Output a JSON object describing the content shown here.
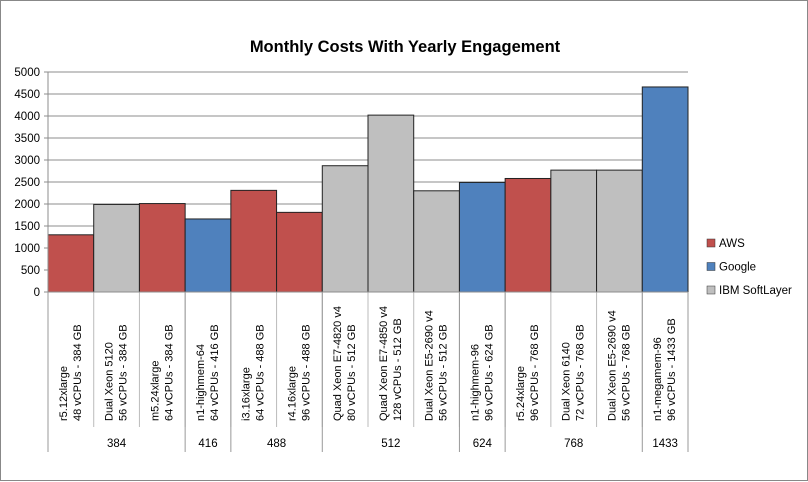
{
  "chart_data": {
    "type": "bar",
    "title": "Monthly Costs With Yearly Engagement",
    "xlabel": "",
    "ylabel": "",
    "ylim": [
      0,
      5000
    ],
    "yticks": [
      "0",
      "500",
      "1000",
      "1500",
      "2000",
      "2500",
      "3000",
      "3500",
      "4000",
      "4500",
      "5000"
    ],
    "grid": true,
    "legend_position": "right",
    "legend": [
      {
        "name": "AWS",
        "color": "#C0504D"
      },
      {
        "name": "Google",
        "color": "#4F81BD"
      },
      {
        "name": "IBM SoftLayer",
        "color": "#BFBFBF"
      }
    ],
    "bars": [
      {
        "name": "r5.12xlarge",
        "spec": "48 vCPUs - 384 GB",
        "provider": "AWS",
        "value": 1300
      },
      {
        "name": "Dual Xeon 5120",
        "spec": "56 vCPUs - 384 GB",
        "provider": "IBM SoftLayer",
        "value": 1990
      },
      {
        "name": "m5.24xlarge",
        "spec": "64 vCPUs - 384 GB",
        "provider": "AWS",
        "value": 2010
      },
      {
        "name": "n1-highmem-64",
        "spec": "64 vCPUs - 416 GB",
        "provider": "Google",
        "value": 1660
      },
      {
        "name": "i3.16xlarge",
        "spec": "64 vCPUs - 488 GB",
        "provider": "AWS",
        "value": 2310
      },
      {
        "name": "r4.16xlarge",
        "spec": "96 vCPUs - 488 GB",
        "provider": "AWS",
        "value": 1810
      },
      {
        "name": "Quad Xeon E7-4820 v4",
        "spec": "80 vCPUs - 512 GB",
        "provider": "IBM SoftLayer",
        "value": 2870
      },
      {
        "name": "Quad Xeon E7-4850 v4",
        "spec": "128 vCPUs - 512 GB",
        "provider": "IBM SoftLayer",
        "value": 4020
      },
      {
        "name": "Dual Xeon E5-2690 v4",
        "spec": "56 vCPUs - 512 GB",
        "provider": "IBM SoftLayer",
        "value": 2300
      },
      {
        "name": "n1-highmem-96",
        "spec": "96 vCPUs - 624 GB",
        "provider": "Google",
        "value": 2490
      },
      {
        "name": "r5.24xlarge",
        "spec": "96 vCPUs - 768 GB",
        "provider": "AWS",
        "value": 2580
      },
      {
        "name": "Dual Xeon 6140",
        "spec": "72 vCPUs - 768 GB",
        "provider": "IBM SoftLayer",
        "value": 2770
      },
      {
        "name": "Dual Xeon E5-2690 v4",
        "spec": "56 vCPUs - 768 GB",
        "provider": "IBM SoftLayer",
        "value": 2770
      },
      {
        "name": "n1-megamem-96",
        "spec": "96 vCPUs - 1433 GB",
        "provider": "Google",
        "value": 4660
      }
    ],
    "groups": [
      {
        "label": "384",
        "count": 3
      },
      {
        "label": "416",
        "count": 1
      },
      {
        "label": "488",
        "count": 2
      },
      {
        "label": "512",
        "count": 3
      },
      {
        "label": "624",
        "count": 1
      },
      {
        "label": "768",
        "count": 3
      },
      {
        "label": "1433",
        "count": 1
      }
    ]
  }
}
